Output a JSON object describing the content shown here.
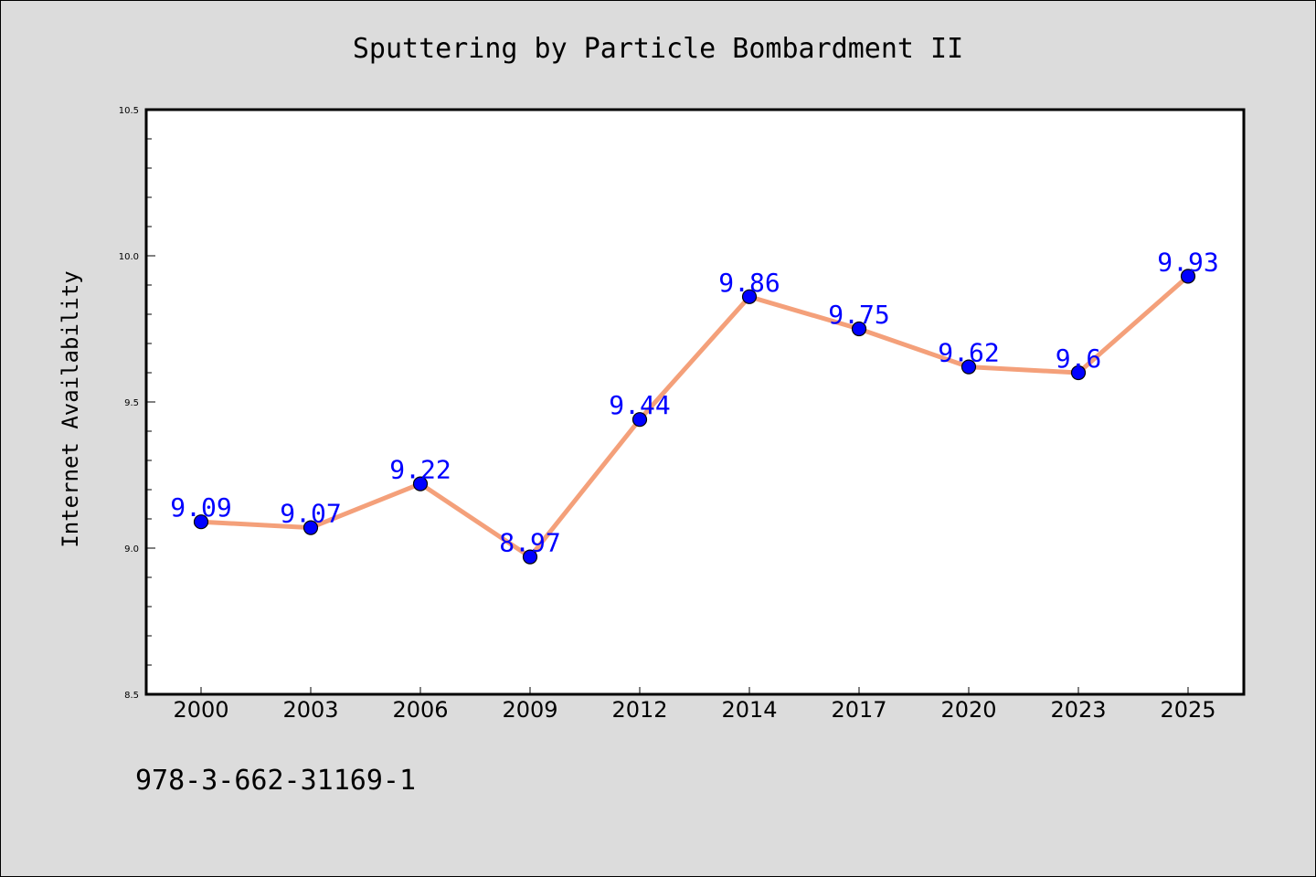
{
  "chart_data": {
    "type": "line",
    "title": "Sputtering by Particle Bombardment II",
    "xlabel": "",
    "ylabel": "Internet Availability",
    "categories": [
      "2000",
      "2003",
      "2006",
      "2009",
      "2012",
      "2014",
      "2017",
      "2020",
      "2023",
      "2025"
    ],
    "values": [
      9.09,
      9.07,
      9.22,
      8.97,
      9.44,
      9.86,
      9.75,
      9.62,
      9.6,
      9.93
    ],
    "data_labels": [
      "9.09",
      "9.07",
      "9.22",
      "8.97",
      "9.44",
      "9.86",
      "9.75",
      "9.62",
      "9.6",
      "9.93"
    ],
    "ylim": [
      8.5,
      10.5
    ],
    "y_ticks": [
      "8.5",
      "9.0",
      "9.5",
      "10.0",
      "10.5"
    ],
    "grid": false,
    "colors": {
      "line": "#f4a07a",
      "marker": "#0000ff",
      "label": "#0000ff",
      "background": "#dcdcdc",
      "plot_background": "#ffffff"
    }
  },
  "footer": {
    "isbn": "978-3-662-31169-1"
  }
}
